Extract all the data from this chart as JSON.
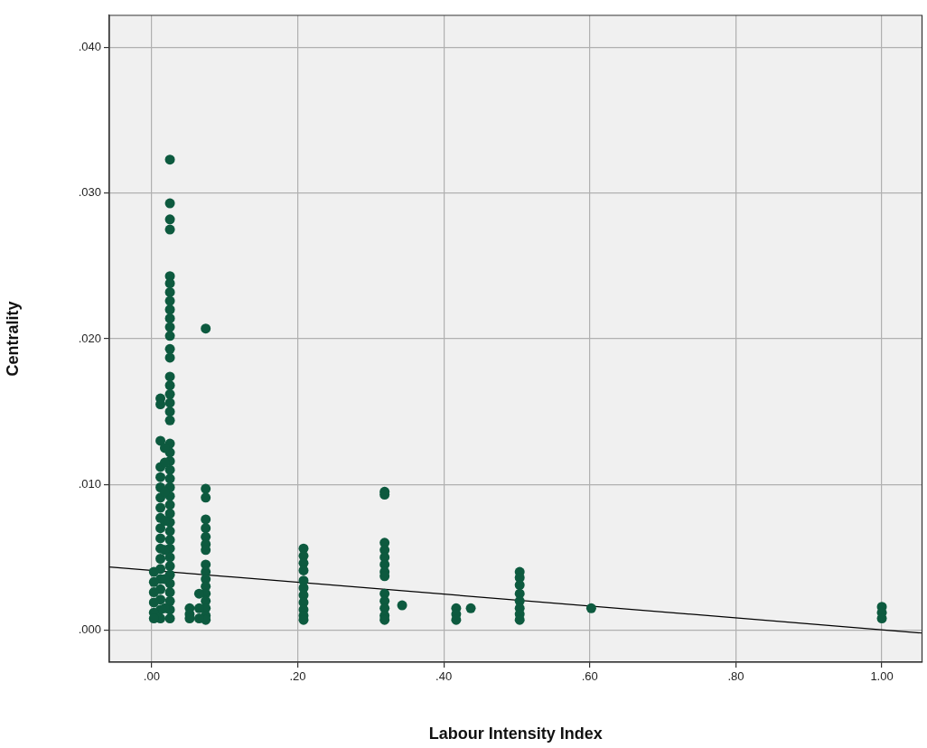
{
  "chart_data": {
    "type": "scatter",
    "xlabel": "Labour Intensity Index",
    "ylabel": "Centrality",
    "grid": true,
    "marker": "circle",
    "legend": false,
    "xlim": [
      -0.058,
      1.055
    ],
    "ylim": [
      -0.0022,
      0.0422
    ],
    "xticks": [
      {
        "value": 0,
        "label": ".00"
      },
      {
        "value": 0.2,
        "label": ".20"
      },
      {
        "value": 0.4,
        "label": ".40"
      },
      {
        "value": 0.6,
        "label": ".60"
      },
      {
        "value": 0.8,
        "label": ".80"
      },
      {
        "value": 1,
        "label": "1.00"
      }
    ],
    "yticks": [
      {
        "value": 0,
        "label": ".000"
      },
      {
        "value": 0.01,
        "label": ".010"
      },
      {
        "value": 0.02,
        "label": ".020"
      },
      {
        "value": 0.03,
        "label": ".030"
      },
      {
        "value": 0.04,
        "label": ".040"
      }
    ],
    "series": [
      {
        "type": "scatter",
        "color": "#0d5a3f",
        "x": [
          0.025,
          0.025,
          0.025,
          0.025,
          0.025,
          0.025,
          0.025,
          0.025,
          0.025,
          0.025,
          0.025,
          0.025,
          0.025,
          0.025,
          0.025,
          0.025,
          0.025,
          0.025,
          0.025,
          0.025,
          0.025,
          0.025,
          0.025,
          0.025,
          0.025,
          0.025,
          0.025,
          0.025,
          0.025,
          0.025,
          0.025,
          0.025,
          0.025,
          0.025,
          0.025,
          0.025,
          0.025,
          0.025,
          0.025,
          0.025,
          0.025,
          0.012,
          0.012,
          0.012,
          0.012,
          0.012,
          0.012,
          0.012,
          0.012,
          0.012,
          0.012,
          0.012,
          0.012,
          0.012,
          0.012,
          0.012,
          0.012,
          0.012,
          0.012,
          0.012,
          0.018,
          0.018,
          0.018,
          0.018,
          0.018,
          0.018,
          0.018,
          0.003,
          0.003,
          0.003,
          0.003,
          0.003,
          0.003,
          0.052,
          0.052,
          0.052,
          0.074,
          0.074,
          0.074,
          0.074,
          0.074,
          0.074,
          0.074,
          0.074,
          0.074,
          0.074,
          0.074,
          0.074,
          0.074,
          0.074,
          0.074,
          0.074,
          0.074,
          0.065,
          0.065,
          0.065,
          0.208,
          0.208,
          0.208,
          0.208,
          0.208,
          0.208,
          0.208,
          0.208,
          0.208,
          0.208,
          0.208,
          0.319,
          0.319,
          0.319,
          0.319,
          0.319,
          0.319,
          0.319,
          0.319,
          0.319,
          0.319,
          0.319,
          0.319,
          0.319,
          0.343,
          0.417,
          0.417,
          0.417,
          0.437,
          0.504,
          0.504,
          0.504,
          0.504,
          0.504,
          0.504,
          0.504,
          0.504,
          0.602,
          1.0,
          1.0,
          1.0
        ],
        "values": [
          0.0323,
          0.0293,
          0.0282,
          0.0275,
          0.0243,
          0.0238,
          0.0232,
          0.0226,
          0.022,
          0.0214,
          0.0208,
          0.0202,
          0.0193,
          0.0187,
          0.0174,
          0.0168,
          0.0162,
          0.0156,
          0.015,
          0.0144,
          0.0128,
          0.0122,
          0.0116,
          0.011,
          0.0104,
          0.0098,
          0.0092,
          0.0086,
          0.008,
          0.0074,
          0.0068,
          0.0062,
          0.0056,
          0.005,
          0.0044,
          0.0038,
          0.0032,
          0.0026,
          0.002,
          0.0014,
          0.0008,
          0.0159,
          0.0155,
          0.013,
          0.0112,
          0.0105,
          0.0098,
          0.0091,
          0.0084,
          0.0077,
          0.007,
          0.0063,
          0.0056,
          0.0049,
          0.0042,
          0.0035,
          0.0028,
          0.0021,
          0.0014,
          0.0008,
          0.0125,
          0.0115,
          0.0095,
          0.0075,
          0.0055,
          0.0035,
          0.0015,
          0.004,
          0.0033,
          0.0026,
          0.0019,
          0.0012,
          0.0008,
          0.0015,
          0.0011,
          0.0008,
          0.0207,
          0.0097,
          0.0091,
          0.0076,
          0.007,
          0.0064,
          0.0059,
          0.0055,
          0.0045,
          0.004,
          0.0035,
          0.003,
          0.0025,
          0.002,
          0.0015,
          0.001,
          0.0007,
          0.0025,
          0.0015,
          0.0008,
          0.0056,
          0.0051,
          0.0046,
          0.0041,
          0.0034,
          0.0029,
          0.0024,
          0.0019,
          0.0014,
          0.001,
          0.0007,
          0.0095,
          0.0093,
          0.006,
          0.0055,
          0.005,
          0.0045,
          0.004,
          0.0037,
          0.0025,
          0.002,
          0.0015,
          0.001,
          0.0007,
          0.0017,
          0.0015,
          0.0011,
          0.0007,
          0.0015,
          0.004,
          0.0036,
          0.0031,
          0.0025,
          0.002,
          0.0015,
          0.0011,
          0.0007,
          0.0015,
          0.0016,
          0.0012,
          0.0008
        ]
      },
      {
        "type": "line",
        "color": "#000000",
        "line_style": "solid",
        "marker": "none",
        "x": [
          -0.058,
          1.055
        ],
        "values": [
          0.00434,
          -0.0002
        ]
      }
    ]
  }
}
